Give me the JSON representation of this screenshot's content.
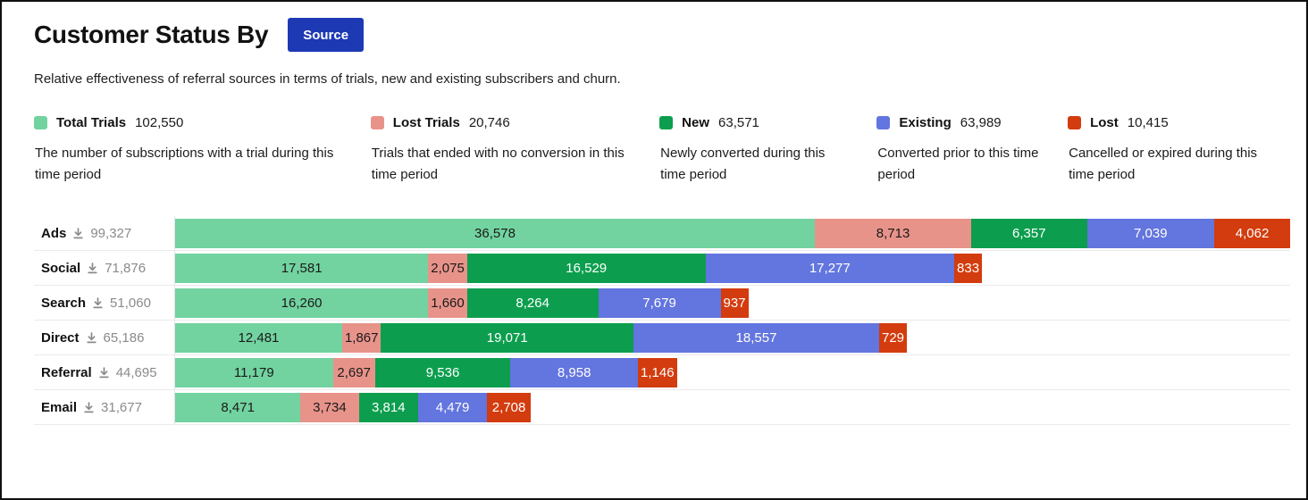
{
  "header": {
    "title": "Customer Status By",
    "button_label": "Source",
    "button_color": "#1d39b4",
    "subtitle": "Relative effectiveness of referral sources in terms of trials, new and existing subscribers and churn."
  },
  "legend": [
    {
      "label": "Total Trials",
      "value": 102550,
      "description": "The number of subscriptions with a trial during this time period",
      "color": "#72d3a0"
    },
    {
      "label": "Lost Trials",
      "value": 20746,
      "description": "Trials that ended with no conversion in this time period",
      "color": "#e8938a"
    },
    {
      "label": "New",
      "value": 63571,
      "description": "Newly converted during this time period",
      "color": "#0c9e4e"
    },
    {
      "label": "Existing",
      "value": 63989,
      "description": "Converted prior to this time period",
      "color": "#6375de"
    },
    {
      "label": "Lost",
      "value": 10415,
      "description": "Cancelled or expired during this time period",
      "color": "#d33c0e"
    }
  ],
  "chart_data": {
    "type": "bar",
    "orientation": "horizontal",
    "stacked": true,
    "categories": [
      "Ads",
      "Social",
      "Search",
      "Direct",
      "Referral",
      "Email"
    ],
    "row_totals": [
      99327,
      71876,
      51060,
      65186,
      44695,
      31677
    ],
    "series": [
      {
        "name": "Total Trials",
        "color": "#72d3a0",
        "text_color": "#1a1a1a",
        "values": [
          36578,
          17581,
          16260,
          12481,
          11179,
          8471
        ]
      },
      {
        "name": "Lost Trials",
        "color": "#e8938a",
        "text_color": "#1a1a1a",
        "values": [
          8713,
          2075,
          1660,
          1867,
          2697,
          3734
        ]
      },
      {
        "name": "New",
        "color": "#0c9e4e",
        "text_color": "#ffffff",
        "values": [
          6357,
          16529,
          8264,
          19071,
          9536,
          3814
        ]
      },
      {
        "name": "Existing",
        "color": "#6375de",
        "text_color": "#ffffff",
        "values": [
          7039,
          17277,
          7679,
          18557,
          8958,
          4479
        ]
      },
      {
        "name": "Lost",
        "color": "#d33c0e",
        "text_color": "#ffffff",
        "values": [
          4062,
          833,
          937,
          729,
          1146,
          2708
        ]
      }
    ],
    "bar_width_rule": "row bar width proportional to row_total / max(row_totals); segment widths proportional to values with min width to fit label"
  }
}
